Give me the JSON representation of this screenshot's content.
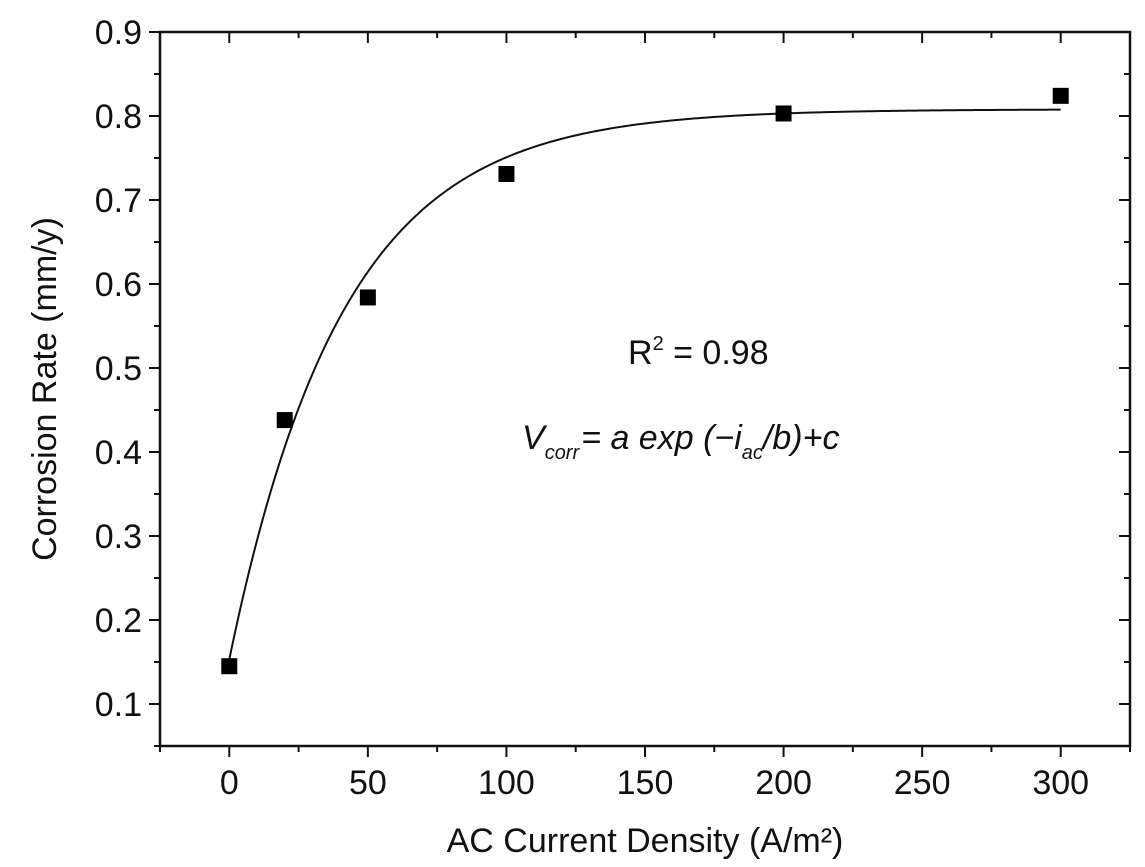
{
  "chart_data": {
    "type": "scatter",
    "xlabel": "AC Current Density (A/m²)",
    "ylabel": "Corrosion Rate (mm/y)",
    "xlim": [
      -25,
      325
    ],
    "ylim": [
      0.05,
      0.9
    ],
    "x_ticks": [
      0,
      50,
      100,
      150,
      200,
      250,
      300
    ],
    "x_tick_labels": [
      "0",
      "50",
      "100",
      "150",
      "200",
      "250",
      "300"
    ],
    "y_ticks": [
      0.1,
      0.2,
      0.3,
      0.4,
      0.5,
      0.6,
      0.7,
      0.8,
      0.9
    ],
    "y_tick_labels": [
      "0.1",
      "0.2",
      "0.3",
      "0.4",
      "0.5",
      "0.6",
      "0.7",
      "0.8",
      "0.9"
    ],
    "grid": false,
    "series": [
      {
        "marker": "square",
        "color": "#000000",
        "x": [
          0,
          20,
          50,
          100,
          200,
          300
        ],
        "y": [
          0.145,
          0.438,
          0.584,
          0.731,
          0.803,
          0.824
        ]
      }
    ],
    "fit": {
      "form": "exponential",
      "a": -0.655,
      "b": 41,
      "c": 0.808,
      "x_range": [
        0,
        300
      ],
      "color": "#000000"
    },
    "annotations": {
      "r2": {
        "base": "R",
        "sup": "2",
        "rest": " = 0.98"
      },
      "equation": {
        "v": "V",
        "v_sub": "corr",
        "mid": "= a exp (−i",
        "i_sub": "ac",
        "end": "/b)+c"
      }
    }
  }
}
